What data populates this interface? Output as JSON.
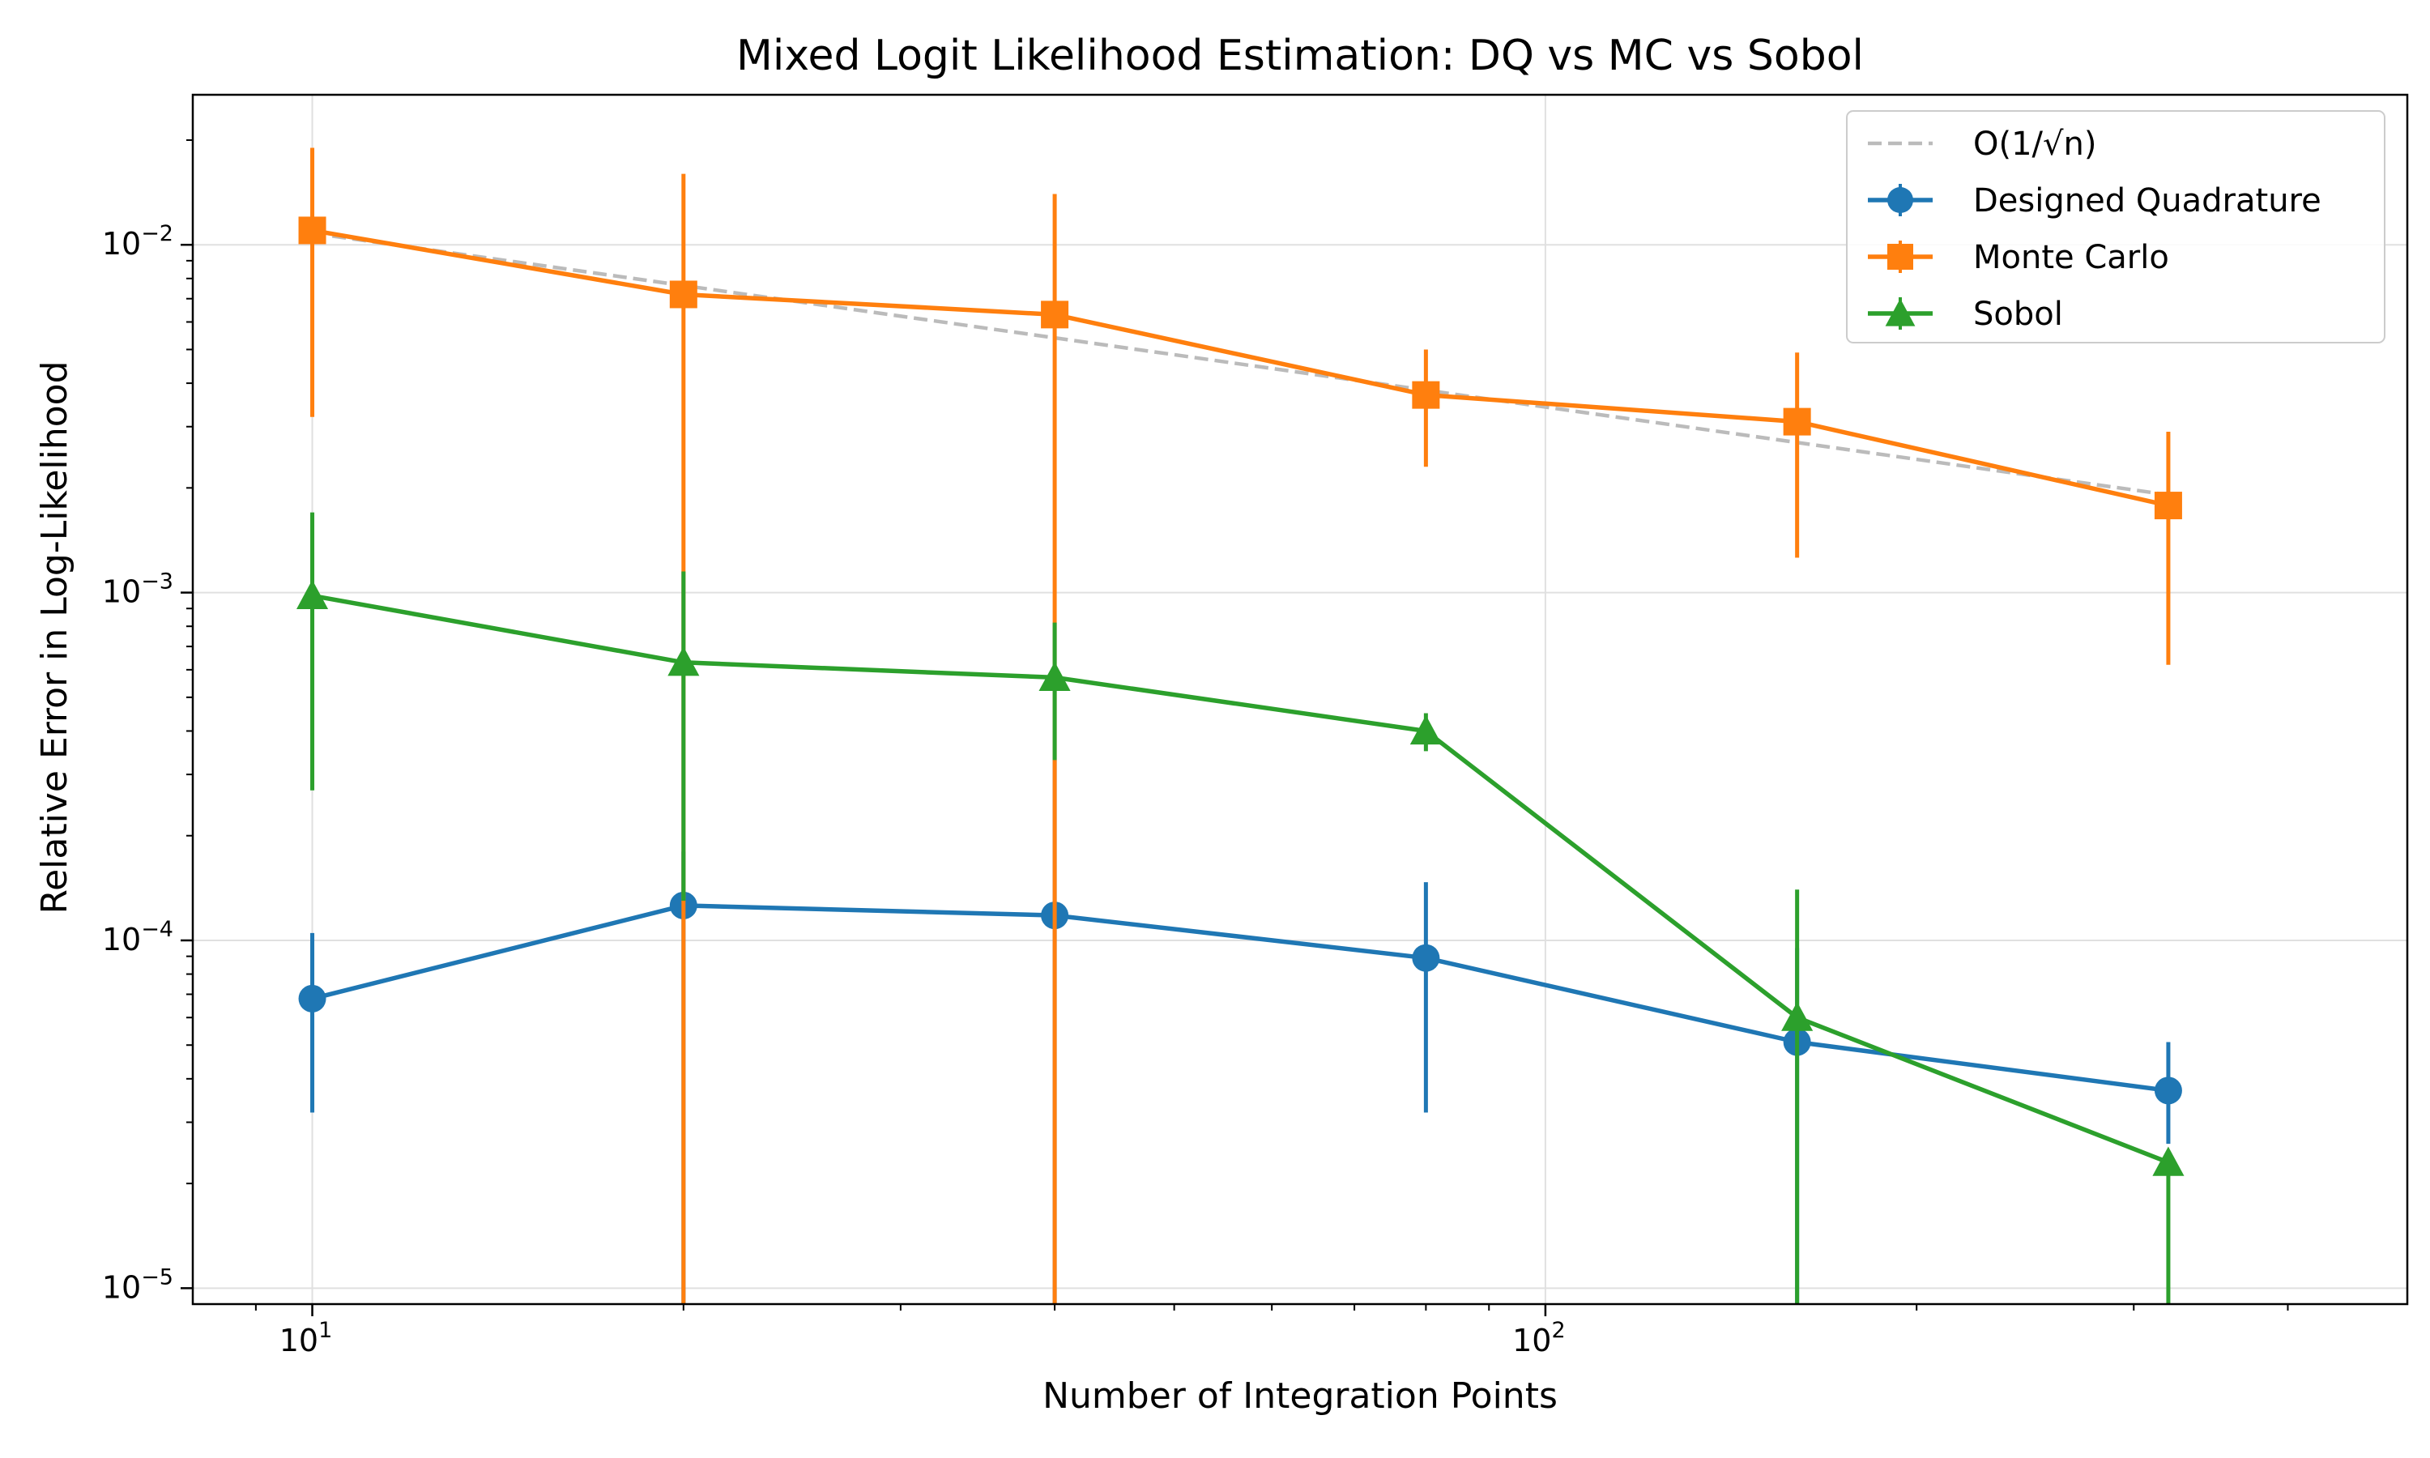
{
  "chart_data": {
    "type": "line",
    "title": "Mixed Logit Likelihood Estimation: DQ vs MC vs Sobol",
    "xlabel": "Number of Integration Points",
    "ylabel": "Relative Error in Log-Likelihood",
    "xscale": "log",
    "yscale": "log",
    "xlim": [
      8.0,
      500
    ],
    "ylim": [
      9e-06,
      0.027
    ],
    "grid": true,
    "legend_position": "top-right",
    "x": [
      10,
      20,
      40,
      80,
      160,
      320
    ],
    "x_ticks": [
      {
        "value": 10,
        "base": "10",
        "exp": "1"
      },
      {
        "value": 100,
        "base": "10",
        "exp": "2"
      }
    ],
    "y_ticks": [
      {
        "value": 1e-05,
        "base": "10",
        "exp": "−5"
      },
      {
        "value": 0.0001,
        "base": "10",
        "exp": "−4"
      },
      {
        "value": 0.001,
        "base": "10",
        "exp": "−3"
      },
      {
        "value": 0.01,
        "base": "10",
        "exp": "−2"
      }
    ],
    "reference_line": {
      "name": "O(1/√n)",
      "color": "#bbbbbb",
      "style": "dashed",
      "x": [
        10,
        320
      ],
      "y": [
        0.0108,
        0.00191
      ]
    },
    "series": [
      {
        "name": "Designed Quadrature",
        "color": "#1f77b4",
        "marker": "circle",
        "values": [
          6.8e-05,
          0.000126,
          0.000118,
          8.9e-05,
          5.1e-05,
          3.7e-05
        ],
        "error_low": [
          3.2e-05,
          9e-06,
          9e-06,
          3.2e-05,
          9e-06,
          2.6e-05
        ],
        "error_high": [
          0.000105,
          0.00018,
          0.00033,
          0.000147,
          9.5e-05,
          5.1e-05
        ]
      },
      {
        "name": "Monte Carlo",
        "color": "#ff7f0e",
        "marker": "square",
        "values": [
          0.011,
          0.0072,
          0.0063,
          0.0037,
          0.0031,
          0.00178
        ],
        "error_low": [
          0.0032,
          9e-06,
          9e-06,
          0.0023,
          0.00126,
          0.00062
        ],
        "error_high": [
          0.019,
          0.016,
          0.014,
          0.005,
          0.0049,
          0.0029
        ]
      },
      {
        "name": "Sobol",
        "color": "#2ca02c",
        "marker": "triangle",
        "values": [
          0.00098,
          0.00063,
          0.00057,
          0.0004,
          6e-05,
          2.3e-05
        ],
        "error_low": [
          0.00027,
          0.00013,
          0.00033,
          0.00035,
          9e-06,
          9e-06
        ],
        "error_high": [
          0.0017,
          0.00115,
          0.00082,
          0.00045,
          0.00014,
          2.4e-05
        ]
      }
    ]
  }
}
